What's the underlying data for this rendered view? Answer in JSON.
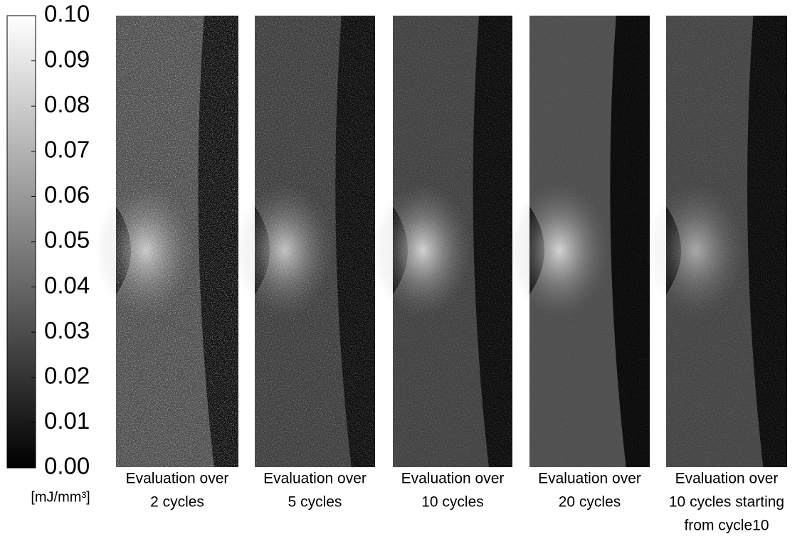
{
  "colorbar": {
    "range": [
      0,
      0.1
    ],
    "ticks": [
      {
        "value": 0,
        "label": "0.00"
      },
      {
        "value": 0.01,
        "label": "0.01"
      },
      {
        "value": 0.02,
        "label": "0.02"
      },
      {
        "value": 0.03,
        "label": "0.03"
      },
      {
        "value": 0.04,
        "label": "0.04"
      },
      {
        "value": 0.05,
        "label": "0.05"
      },
      {
        "value": 0.06,
        "label": "0.06"
      },
      {
        "value": 0.07,
        "label": "0.07"
      },
      {
        "value": 0.08,
        "label": "0.08"
      },
      {
        "value": 0.09,
        "label": "0.09"
      },
      {
        "value": 0.1,
        "label": "0.10"
      }
    ],
    "unit": "[mJ/mm³]"
  },
  "panels": [
    {
      "caption": [
        "Evaluation over",
        "2 cycles"
      ]
    },
    {
      "caption": [
        "Evaluation over",
        "5 cycles"
      ]
    },
    {
      "caption": [
        "Evaluation over",
        "10 cycles"
      ]
    },
    {
      "caption": [
        "Evaluation over",
        "20 cycles"
      ]
    },
    {
      "caption": [
        "Evaluation over",
        "10 cycles starting",
        "from cycle10"
      ]
    }
  ]
}
